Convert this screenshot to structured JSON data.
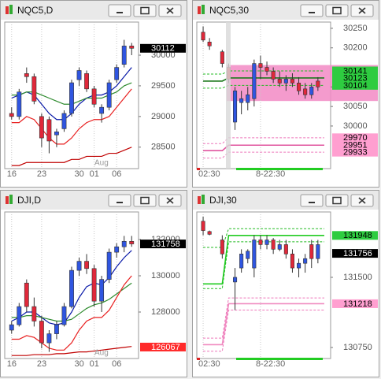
{
  "chart_data": [
    {
      "type": "candlestick",
      "title": "NQC5,D",
      "categories": [
        "16",
        null,
        null,
        null,
        "23",
        null,
        null,
        null,
        null,
        "30",
        null,
        "01",
        null,
        null,
        "06",
        null,
        null
      ],
      "month_label": "Aug",
      "candles": {
        "open": [
          29050,
          29000,
          29700,
          29650,
          29000,
          28950,
          28700,
          28800,
          29050,
          29600,
          29700,
          29450,
          29050,
          29150,
          29600,
          29850,
          30150
        ],
        "high": [
          29150,
          29450,
          29800,
          29700,
          29050,
          29000,
          28800,
          29100,
          29600,
          29800,
          29750,
          29500,
          29200,
          29600,
          29850,
          30250,
          30200
        ],
        "low": [
          28950,
          28950,
          29550,
          29200,
          28500,
          28400,
          28500,
          28750,
          29000,
          29500,
          29400,
          29150,
          28900,
          29100,
          29550,
          29800,
          30000
        ],
        "close": [
          29000,
          29400,
          29650,
          29250,
          28650,
          28600,
          28750,
          29050,
          29550,
          29750,
          29450,
          29200,
          29150,
          29550,
          29800,
          30150,
          30112
        ]
      },
      "up_color": "#2f55e0",
      "down_color": "#e0283a",
      "ylim": [
        28150,
        30540
      ],
      "yticks": [
        30000,
        29500,
        29000,
        28500
      ],
      "lines": [
        {
          "color": "#0a1aa8",
          "values": [
            29300,
            29350,
            29400,
            29350,
            29200,
            29050,
            28950,
            28950,
            29050,
            29200,
            29300,
            29350,
            29350,
            29400,
            29500,
            29650,
            29800
          ]
        },
        {
          "color": "#2e8b2e",
          "values": [
            29350,
            29350,
            29400,
            29400,
            29350,
            29300,
            29250,
            29200,
            29200,
            29250,
            29300,
            29300,
            29300,
            29350,
            29400,
            29500,
            29550
          ]
        },
        {
          "color": "#e82020",
          "values": [
            28900,
            28900,
            29000,
            28950,
            28800,
            28650,
            28550,
            28550,
            28650,
            28800,
            28900,
            28950,
            28950,
            29000,
            29150,
            29300,
            29450
          ]
        },
        {
          "color": "#c00000",
          "values": [
            28200,
            28200,
            28250,
            28250,
            28250,
            28250,
            28250,
            28250,
            28300,
            28300,
            28350,
            28350,
            28350,
            28400,
            28400,
            28450,
            28500
          ]
        }
      ],
      "price_labels": {
        "values": [
          30112
        ],
        "colors": [
          "#000000"
        ],
        "text_colors": [
          "#ffffff"
        ]
      }
    },
    {
      "type": "candlestick",
      "title": "NQC5,30",
      "categories": [
        "02:30",
        null,
        null,
        null,
        null,
        null,
        null,
        null,
        null,
        "8-22:30",
        null,
        null,
        null,
        null,
        null,
        null,
        null,
        null,
        null,
        null
      ],
      "candles": {
        "open": [
          30240,
          30215,
          null,
          30190,
          30150,
          30010,
          30060,
          30060,
          30070,
          30160,
          30150,
          30140,
          30120,
          30110,
          30120,
          30110,
          30095,
          30080,
          30115,
          null
        ],
        "high": [
          30255,
          30225,
          null,
          30195,
          30160,
          30100,
          30090,
          30100,
          30170,
          30180,
          30165,
          30150,
          30140,
          30130,
          30135,
          30125,
          30110,
          30110,
          30125,
          null
        ],
        "low": [
          30215,
          30195,
          null,
          30150,
          30110,
          29990,
          30030,
          30040,
          30050,
          30120,
          30130,
          30110,
          30100,
          30090,
          30100,
          30080,
          30070,
          30070,
          30090,
          null
        ],
        "close": [
          30220,
          30205,
          null,
          30160,
          30120,
          30090,
          30070,
          30080,
          30160,
          30150,
          30140,
          30120,
          30110,
          30120,
          30110,
          30090,
          30080,
          30100,
          30100,
          null
        ]
      },
      "up_color": "#2f55e0",
      "down_color": "#e0283a",
      "ylim": [
        29891,
        30266
      ],
      "yticks": [
        30250,
        30200,
        30100,
        30050,
        30000
      ],
      "band": {
        "range": [
          30064,
          30156
        ],
        "color": "#f28ac4"
      },
      "levels": [
        {
          "color": "#22bb22",
          "dashed": true,
          "values": [
            30133,
            30133,
            30133,
            30133,
            30141,
            30141,
            30141,
            30141,
            30141,
            30141,
            30141,
            30141,
            30141,
            30141,
            30141,
            30141,
            30141,
            30141,
            30141,
            30141
          ]
        },
        {
          "color": "#1f7a1f",
          "dashed": false,
          "values": [
            30115,
            30115,
            30115,
            30115,
            30123,
            30123,
            30123,
            30123,
            30123,
            30123,
            30123,
            30123,
            30123,
            30123,
            30123,
            30123,
            30123,
            30123,
            30123,
            30123
          ]
        },
        {
          "color": "#22bb22",
          "dashed": true,
          "values": [
            30097,
            30097,
            30097,
            30097,
            30104,
            30104,
            30104,
            30104,
            30104,
            30104,
            30104,
            30104,
            30104,
            30104,
            30104,
            30104,
            30104,
            30104,
            30104,
            30104
          ]
        },
        {
          "color": "#ee77bb",
          "dashed": true,
          "values": [
            29955,
            29955,
            29955,
            29955,
            29970,
            29970,
            29970,
            29970,
            29970,
            29970,
            29970,
            29970,
            29970,
            29970,
            29970,
            29970,
            29970,
            29970,
            29970,
            29970
          ]
        },
        {
          "color": "#e0559f",
          "dashed": false,
          "values": [
            29937,
            29937,
            29937,
            29937,
            29951,
            29951,
            29951,
            29951,
            29951,
            29951,
            29951,
            29951,
            29951,
            29951,
            29951,
            29951,
            29951,
            29951,
            29951,
            29951
          ]
        },
        {
          "color": "#ee77bb",
          "dashed": true,
          "values": [
            29918,
            29918,
            29918,
            29918,
            29933,
            29933,
            29933,
            29933,
            29933,
            29933,
            29933,
            29933,
            29933,
            29933,
            29933,
            29933,
            29933,
            29933,
            29933,
            29933
          ]
        }
      ],
      "price_labels": {
        "values": [
          30141,
          30123,
          30104,
          29970,
          29951,
          29933
        ],
        "colors": [
          "#2ecc40",
          "#2ecc40",
          "#2ecc40",
          "#ff9fd0",
          "#ff9fd0",
          "#ff9fd0"
        ],
        "text_colors": [
          "#000000",
          "#000000",
          "#000000",
          "#000000",
          "#000000",
          "#000000"
        ]
      }
    },
    {
      "type": "candlestick",
      "title": "DJI,D",
      "categories": [
        "16",
        null,
        null,
        null,
        "23",
        null,
        null,
        null,
        null,
        "30",
        null,
        "01",
        null,
        null,
        "06",
        null,
        null
      ],
      "month_label": "Aug",
      "candles": {
        "open": [
          127000,
          127300,
          129600,
          128300,
          127500,
          126300,
          126800,
          127300,
          128300,
          130300,
          130800,
          130400,
          128600,
          129800,
          131300,
          131600,
          131900
        ],
        "high": [
          127500,
          128500,
          129800,
          128800,
          127800,
          127000,
          127500,
          128500,
          130500,
          131000,
          131200,
          130600,
          130000,
          131500,
          131800,
          132200,
          132200
        ],
        "low": [
          126800,
          127200,
          128000,
          127200,
          126000,
          125800,
          126500,
          127200,
          128200,
          130000,
          130100,
          128300,
          128000,
          129600,
          131000,
          131300,
          131600
        ],
        "close": [
          127300,
          128300,
          128300,
          127500,
          126300,
          126800,
          127300,
          128300,
          130300,
          130800,
          130400,
          128600,
          129800,
          131300,
          131600,
          131900,
          131758
        ]
      },
      "up_color": "#2f55e0",
      "down_color": "#e0283a",
      "ylim": [
        125435,
        133522
      ],
      "yticks": [
        132000,
        130000,
        128000
      ],
      "lines": [
        {
          "color": "#0a1aa8",
          "values": [
            127500,
            127700,
            128000,
            128000,
            127700,
            127400,
            127300,
            127400,
            128000,
            128800,
            129400,
            129600,
            129500,
            129900,
            130500,
            131000,
            131400
          ]
        },
        {
          "color": "#2e8b2e",
          "values": [
            127700,
            127700,
            127800,
            127800,
            127700,
            127600,
            127500,
            127500,
            127600,
            127900,
            128200,
            128400,
            128500,
            128700,
            129000,
            129300,
            129600
          ]
        },
        {
          "color": "#e82020",
          "values": [
            126500,
            126500,
            126700,
            126600,
            126300,
            126000,
            125900,
            125900,
            126300,
            127000,
            127500,
            127700,
            127700,
            128100,
            128800,
            129500,
            130000
          ]
        },
        {
          "color": "#c00000",
          "values": [
            125600,
            125600,
            125600,
            125650,
            125650,
            125650,
            125700,
            125700,
            125750,
            125800,
            125800,
            125850,
            125900,
            125950,
            126000,
            126050,
            126100
          ]
        }
      ],
      "price_labels": {
        "values": [
          131758,
          126067
        ],
        "colors": [
          "#000000",
          "#ff2a2a"
        ],
        "text_colors": [
          "#ffffff",
          "#ffffff"
        ]
      }
    },
    {
      "type": "candlestick",
      "title": "DJI,30",
      "categories": [
        "02:30",
        null,
        null,
        null,
        null,
        null,
        null,
        null,
        null,
        "8-22:30",
        null,
        null,
        null,
        null,
        null,
        null,
        null,
        null,
        null,
        null
      ],
      "candles": {
        "open": [
          132100,
          131990,
          null,
          131900,
          null,
          131450,
          131600,
          131700,
          131600,
          131900,
          131850,
          131900,
          131800,
          131850,
          131750,
          131600,
          131650,
          131850,
          131700,
          null
        ],
        "high": [
          132150,
          132000,
          null,
          131950,
          null,
          131600,
          131800,
          131800,
          131950,
          131950,
          131950,
          131920,
          131900,
          131900,
          131800,
          131700,
          131750,
          131900,
          131900,
          null
        ],
        "low": [
          131950,
          131950,
          null,
          131700,
          null,
          131150,
          131550,
          131650,
          131500,
          131800,
          131800,
          131750,
          131780,
          131700,
          131550,
          131500,
          131550,
          131600,
          131650,
          null
        ],
        "close": [
          132000,
          131960,
          null,
          131750,
          null,
          131500,
          131750,
          131780,
          131900,
          131850,
          131900,
          131800,
          131850,
          131750,
          131600,
          131650,
          131700,
          131700,
          131850,
          null
        ]
      },
      "up_color": "#2f55e0",
      "down_color": "#e0283a",
      "ylim": [
        130632,
        132199
      ],
      "yticks": [
        131500,
        130750
      ],
      "levels": [
        {
          "color": "#22bb22",
          "dashed": true,
          "values": [
            131820,
            131820,
            131820,
            131820,
            132020,
            132020,
            132020,
            132020,
            132020,
            132020,
            132020,
            132020,
            132020,
            132020,
            132020,
            132020,
            132020,
            132020,
            132020,
            132020
          ]
        },
        {
          "color": "#22cc22",
          "dashed": false,
          "values": [
            131430,
            131430,
            131430,
            131430,
            131948,
            131948,
            131948,
            131948,
            131948,
            131948,
            131948,
            131948,
            131948,
            131948,
            131948,
            131948,
            131948,
            131948,
            131948,
            131948
          ]
        },
        {
          "color": "#22bb22",
          "dashed": true,
          "values": [
            131380,
            131380,
            131380,
            131380,
            131880,
            131880,
            131880,
            131880,
            131880,
            131880,
            131880,
            131880,
            131880,
            131880,
            131880,
            131880,
            131880,
            131880,
            131880,
            131880
          ]
        },
        {
          "color": "#ee77bb",
          "dashed": true,
          "values": [
            130850,
            130850,
            130850,
            130850,
            131280,
            131280,
            131280,
            131280,
            131280,
            131280,
            131280,
            131280,
            131280,
            131280,
            131280,
            131280,
            131280,
            131280,
            131280,
            131280
          ]
        },
        {
          "color": "#f08ac0",
          "dashed": false,
          "values": [
            130780,
            130780,
            130780,
            130780,
            131218,
            131218,
            131218,
            131218,
            131218,
            131218,
            131218,
            131218,
            131218,
            131218,
            131218,
            131218,
            131218,
            131218,
            131218,
            131218
          ]
        },
        {
          "color": "#ee77bb",
          "dashed": true,
          "values": [
            130710,
            130710,
            130710,
            130710,
            131150,
            131150,
            131150,
            131150,
            131150,
            131150,
            131150,
            131150,
            131150,
            131150,
            131150,
            131150,
            131150,
            131150,
            131150,
            131150
          ]
        }
      ],
      "price_labels": {
        "values": [
          131948,
          131756,
          131218
        ],
        "colors": [
          "#2ecc40",
          "#000000",
          "#ff9fd0"
        ],
        "text_colors": [
          "#000000",
          "#ffffff",
          "#000000"
        ]
      }
    }
  ]
}
